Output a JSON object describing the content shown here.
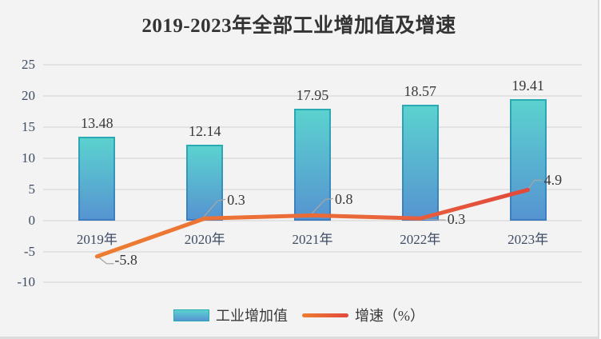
{
  "chart_data": {
    "type": "combo",
    "title": "2019-2023年全部工业增加值及增速",
    "categories": [
      "2019年",
      "2020年",
      "2021年",
      "2022年",
      "2023年"
    ],
    "series": [
      {
        "name": "工业增加值",
        "type": "bar",
        "values": [
          13.48,
          12.14,
          17.95,
          18.57,
          19.41
        ],
        "labels": [
          "13.48",
          "12.14",
          "17.95",
          "18.57",
          "19.41"
        ]
      },
      {
        "name": "增速（%）",
        "type": "line",
        "values": [
          -5.8,
          0.3,
          0.8,
          0.3,
          4.9
        ],
        "labels": [
          "-5.8",
          "0.3",
          "0.8",
          "0.3",
          "4.9"
        ]
      }
    ],
    "y_ticks": [
      25,
      20,
      15,
      10,
      5,
      0,
      -5,
      -10
    ],
    "ylim": [
      -10,
      25
    ],
    "grid": "on",
    "legend_position": "bottom",
    "colors": {
      "bar_gradient_top": "#5bd2cf",
      "bar_gradient_bottom": "#5694d1",
      "bar_border_top": "#2aaab2",
      "bar_border_bottom": "#3e7cc0",
      "line_gradient_start": "#ed7d31",
      "line_gradient_end": "#e2483c",
      "leader": "#a6a6a6",
      "axis_text": "#3e4c63",
      "data_label": "#383838",
      "grid": "#e2e2e2",
      "background": "#f3f3f3",
      "title_text": "#333333"
    }
  }
}
